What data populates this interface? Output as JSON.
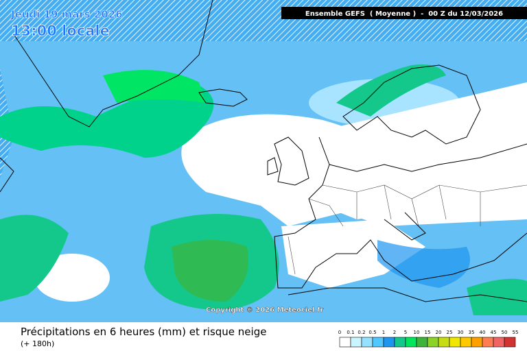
{
  "header": {
    "date": "Jeudi 19 mars 2026",
    "time": "13:00 locale",
    "model": "Ensemble GEFS  ( Moyenne )  -  00 Z du 12/03/2026"
  },
  "copyright": "Copyright © 2026 Meteociel.fr",
  "footer": {
    "title": "Précipitations en 6 heures (mm) et risque neige",
    "lead": "(+ 180h)"
  },
  "legend": {
    "labels": [
      "0",
      "0.1",
      "0.2",
      "0.5",
      "1",
      "2",
      "5",
      "10",
      "15",
      "20",
      "25",
      "30",
      "35",
      "40",
      "45",
      "50",
      "55"
    ],
    "colors": [
      "#ffffff",
      "#c8f5ff",
      "#96e1ff",
      "#50c8ff",
      "#1e96f0",
      "#14c88c",
      "#00e65a",
      "#3cb43c",
      "#8cd228",
      "#c8dc14",
      "#f0e600",
      "#ffc800",
      "#ffa000",
      "#ff7d50",
      "#f06464",
      "#d23232"
    ]
  }
}
